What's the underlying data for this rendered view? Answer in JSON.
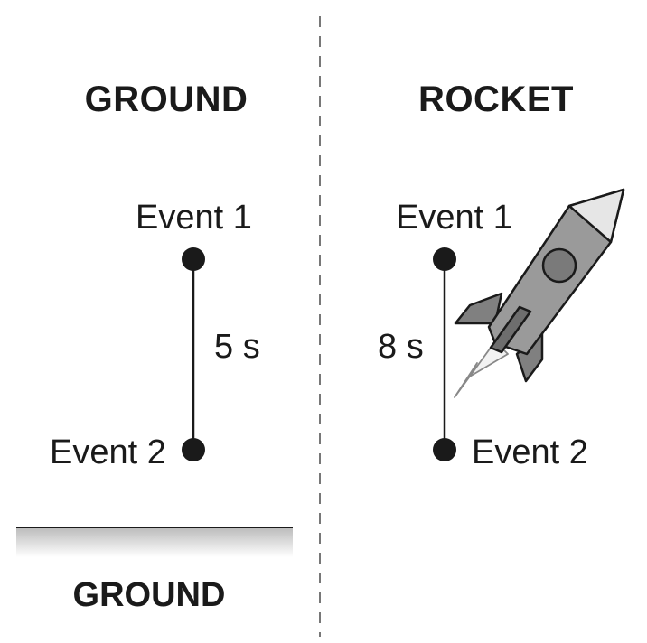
{
  "ground_panel": {
    "title": "GROUND",
    "event1": "Event 1",
    "event2": "Event 2",
    "interval": "5 s",
    "surface_label": "GROUND"
  },
  "rocket_panel": {
    "title": "ROCKET",
    "event1": "Event 1",
    "event2": "Event 2",
    "interval": "8 s"
  },
  "icons": [
    "rocket-icon"
  ],
  "colors": {
    "ink": "#1a1a1a",
    "rocket_body": "#9a9a9a",
    "rocket_dark": "#6e6e6e",
    "nose": "#e6e6e6"
  }
}
